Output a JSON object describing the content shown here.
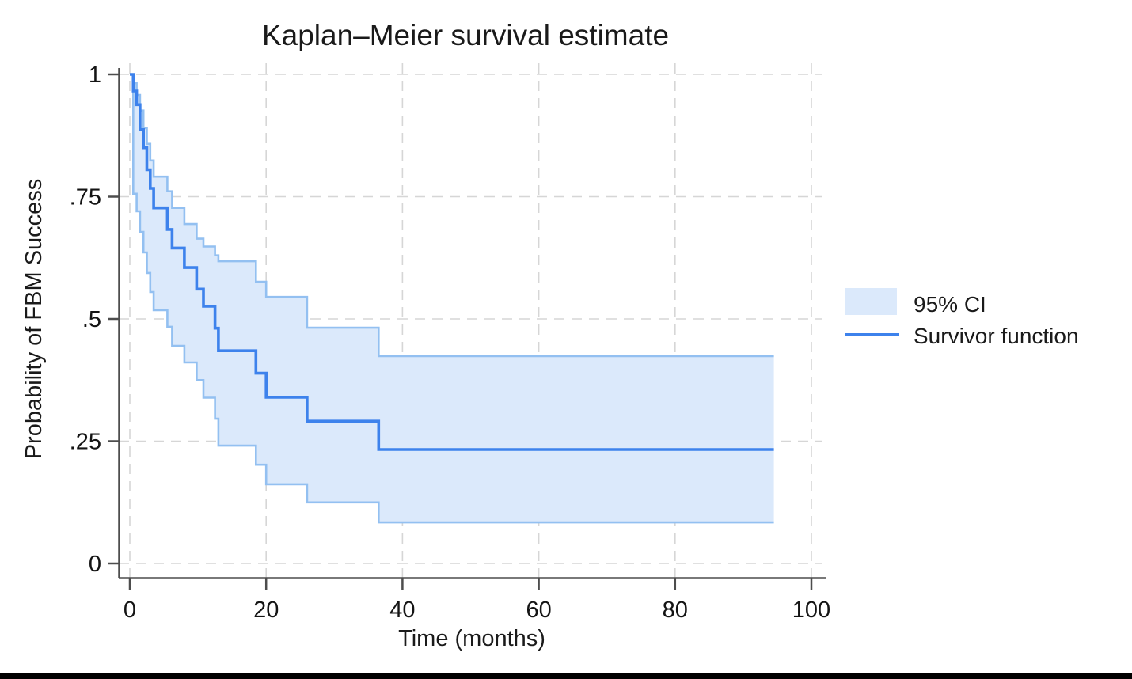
{
  "window": {
    "background": "#ffffff",
    "bottom_bar_color": "#000000"
  },
  "chart_data": {
    "type": "line",
    "subtype": "kaplan-meier-step",
    "title": "Kaplan–Meier survival estimate",
    "xlabel": "Time (months)",
    "ylabel": "Probability of FBM Success",
    "x_ticks": [
      0,
      20,
      40,
      60,
      80,
      100
    ],
    "x_tick_labels": [
      "0",
      "20",
      "40",
      "60",
      "80",
      "100"
    ],
    "y_ticks": [
      0,
      0.25,
      0.5,
      0.75,
      1
    ],
    "y_tick_labels": [
      "0",
      ".25",
      ".5",
      ".75",
      "1"
    ],
    "xlim": [
      0,
      100
    ],
    "ylim": [
      0,
      1
    ],
    "grid": true,
    "grid_style": "dashed",
    "end_of_followup_month": 94.5,
    "legend": {
      "position": "right-outside",
      "items": [
        {
          "label": "95% CI",
          "marker": "area"
        },
        {
          "label": "Survivor function",
          "marker": "line"
        }
      ]
    },
    "series": [
      {
        "name": "Survivor function",
        "type": "step",
        "x": [
          0,
          0.5,
          1,
          1.5,
          2,
          2.5,
          3,
          3.5,
          5.5,
          6.2,
          8,
          9.8,
          10.8,
          12.5,
          13,
          18.5,
          20,
          26,
          36.5
        ],
        "y": [
          1,
          0.966,
          0.938,
          0.887,
          0.85,
          0.805,
          0.767,
          0.727,
          0.683,
          0.645,
          0.605,
          0.561,
          0.526,
          0.481,
          0.435,
          0.389,
          0.34,
          0.291,
          0.233
        ]
      },
      {
        "name": "95% CI upper",
        "type": "step",
        "x": [
          0,
          0.5,
          1,
          1.5,
          2,
          2.5,
          3,
          3.5,
          5.5,
          6.2,
          8,
          9.8,
          10.8,
          12.5,
          13,
          18.5,
          20,
          26,
          36.5
        ],
        "y": [
          1,
          0.982,
          0.958,
          0.926,
          0.89,
          0.858,
          0.824,
          0.791,
          0.761,
          0.727,
          0.694,
          0.664,
          0.648,
          0.63,
          0.618,
          0.576,
          0.545,
          0.482,
          0.424
        ]
      },
      {
        "name": "95% CI lower",
        "type": "step",
        "x": [
          0,
          0.5,
          1,
          1.5,
          2,
          2.5,
          3,
          3.5,
          5.5,
          6.2,
          8,
          9.8,
          10.8,
          12.5,
          13,
          18.5,
          20,
          26,
          36.5
        ],
        "y": [
          1,
          0.756,
          0.72,
          0.678,
          0.636,
          0.594,
          0.555,
          0.518,
          0.484,
          0.445,
          0.411,
          0.375,
          0.339,
          0.296,
          0.241,
          0.202,
          0.162,
          0.125,
          0.084
        ]
      }
    ],
    "colors": {
      "survivor_line": "#3d82ec",
      "ci_fill": "#dbe9fb",
      "ci_edge": "#93c0f1",
      "grid": "#d6d6d6",
      "axis": "#4d4d4d",
      "text": "#1a1a1a"
    }
  }
}
